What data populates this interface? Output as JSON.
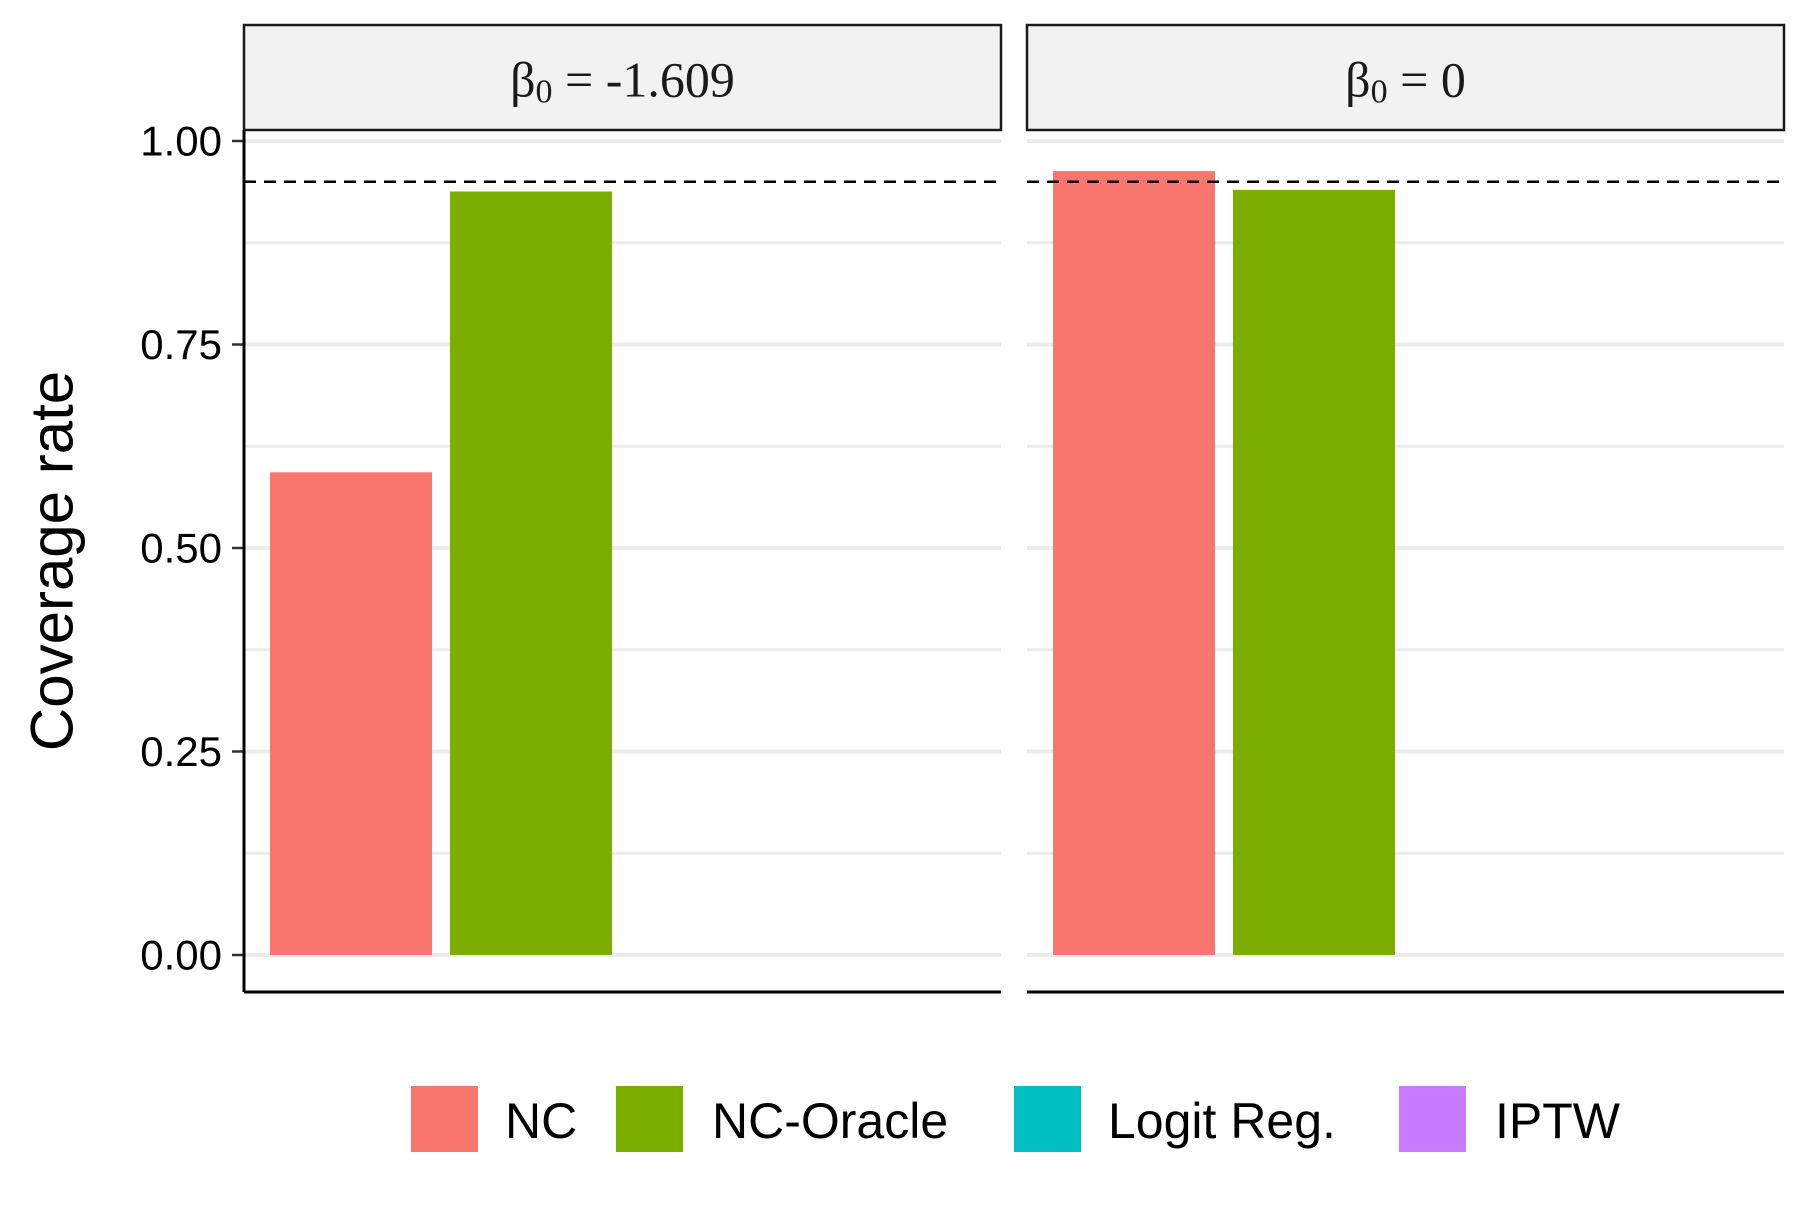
{
  "chart_data": {
    "type": "bar",
    "ylabel": "Coverage rate",
    "xlabel": "",
    "ylim": [
      0,
      1.05
    ],
    "yticks": [
      "0.00",
      "0.25",
      "0.50",
      "0.75",
      "1.00"
    ],
    "ytick_values": [
      0,
      0.25,
      0.5,
      0.75,
      1.0
    ],
    "reference_line": {
      "y": 0.95,
      "style": "dashed"
    },
    "grid": true,
    "legend_position": "bottom",
    "series": [
      {
        "name": "NC",
        "color": "#F8766D"
      },
      {
        "name": "NC-Oracle",
        "color": "#7CAE00"
      },
      {
        "name": "Logit Reg.",
        "color": "#00BFC4"
      },
      {
        "name": "IPTW",
        "color": "#C77CFF"
      }
    ],
    "panels": [
      {
        "strip_prefix": "β",
        "strip_sub": "0",
        "strip_eq": "=",
        "strip_value": "-1.609",
        "values": [
          0.593,
          0.938,
          0,
          0
        ]
      },
      {
        "strip_prefix": "β",
        "strip_sub": "0",
        "strip_eq": "=",
        "strip_value": "0",
        "values": [
          0.963,
          0.94,
          0,
          0
        ]
      }
    ]
  }
}
